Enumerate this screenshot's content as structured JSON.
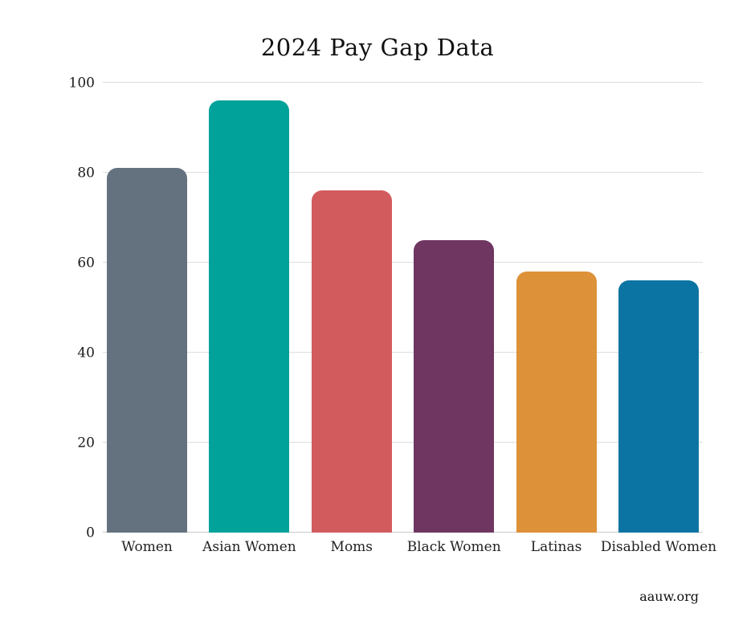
{
  "page": {
    "title": "2024 Pay Gap Data",
    "attribution": "aauw.org"
  },
  "chart_data": {
    "type": "bar",
    "title": "2024 Pay Gap Data",
    "categories": [
      "Women",
      "Asian Women",
      "Moms",
      "Black Women",
      "Latinas",
      "Disabled Women"
    ],
    "values": [
      81,
      96,
      76,
      65,
      58,
      56
    ],
    "bar_colors": [
      "#64717f",
      "#00a29a",
      "#d25b5e",
      "#6e3661",
      "#dd9138",
      "#0c74a3"
    ],
    "xlabel": "",
    "ylabel": "",
    "ylim": [
      0,
      100
    ],
    "yticks": [
      0,
      20,
      40,
      60,
      80,
      100
    ],
    "grid": "horizontal",
    "legend": "none",
    "attribution": "aauw.org"
  }
}
